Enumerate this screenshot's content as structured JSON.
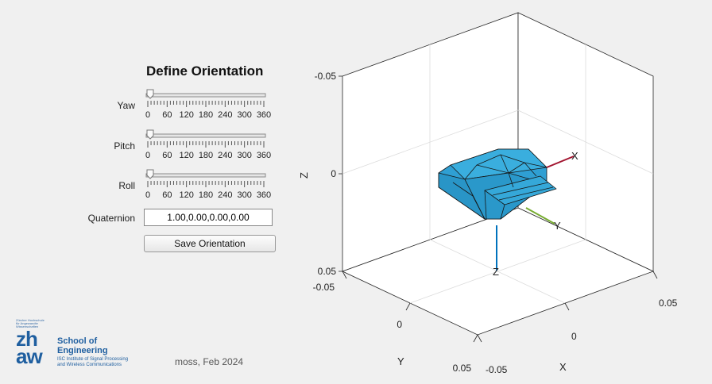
{
  "panel": {
    "title": "Define Orientation",
    "sliders": [
      {
        "label": "Yaw",
        "value": 0,
        "min": 0,
        "max": 360
      },
      {
        "label": "Pitch",
        "value": 0,
        "min": 0,
        "max": 360
      },
      {
        "label": "Roll",
        "value": 0,
        "min": 0,
        "max": 360
      }
    ],
    "tick_labels": [
      "0",
      "60",
      "120",
      "180",
      "240",
      "300",
      "360"
    ],
    "quaternion_label": "Quaternion",
    "quaternion_value": "1.00,0.00,0.00,0.00",
    "save_label": "Save Orientation"
  },
  "footer": {
    "logo_tiny": "Zürcher Hochschule für Angewandte Wissenschaften",
    "logo_zh": "zh",
    "logo_aw": "aw",
    "school_line1": "School of",
    "school_line2": "Engineering",
    "institute_line1": "ISC Institute of Signal Processing",
    "institute_line2": "and Wireless Communications",
    "author": "moss, Feb 2024"
  },
  "plot": {
    "z_label": "Z",
    "y_label": "Y",
    "x_label": "X",
    "z_ticks": [
      "-0.05",
      "0",
      "0.05"
    ],
    "y_ticks": [
      "-0.05",
      "0",
      "0.05"
    ],
    "x_ticks": [
      "-0.05",
      "0",
      "0.05"
    ],
    "body_axes": [
      "X",
      "Y",
      "Z"
    ],
    "colors": {
      "body": "#2f9fd3",
      "x_axis": "#a2142f",
      "y_axis": "#77ac30",
      "z_axis": "#0072bd"
    }
  }
}
